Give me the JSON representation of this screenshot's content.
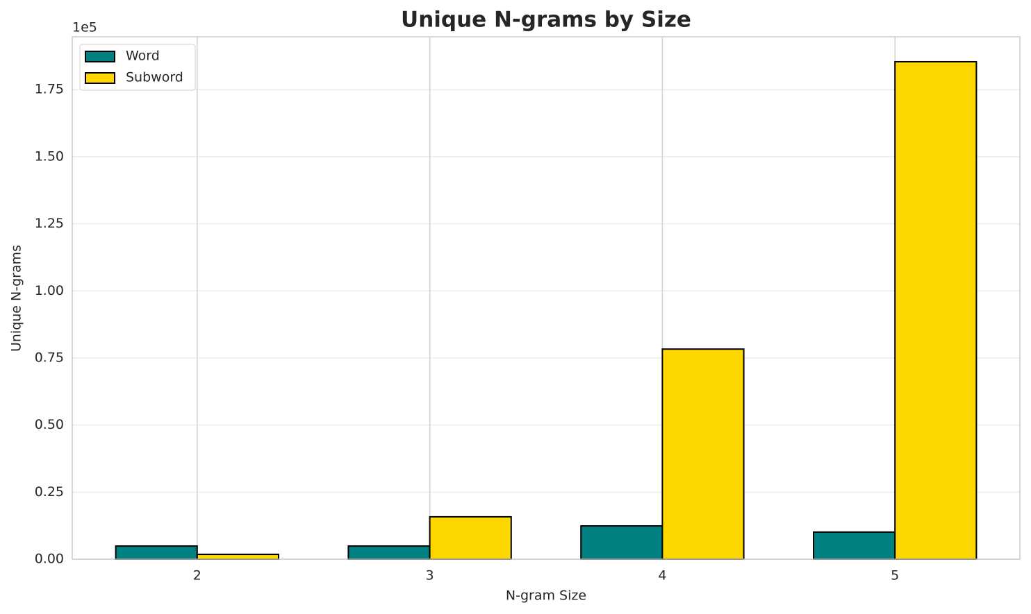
{
  "chart_data": {
    "type": "bar",
    "title": "Unique N-grams by Size",
    "x_label": "N-gram Size",
    "y_label": "Unique N-grams",
    "y_offset_label": "1e5",
    "categories": [
      "2",
      "3",
      "4",
      "5"
    ],
    "series": [
      {
        "name": "Word",
        "color": "#008080",
        "values": [
          4900,
          4900,
          12400,
          10100
        ]
      },
      {
        "name": "Subword",
        "color": "#ffd700",
        "values": [
          1800,
          15800,
          78300,
          185400
        ]
      }
    ],
    "ylim": [
      0,
      194700
    ],
    "yticks": [
      {
        "value": 0,
        "label": "0.00"
      },
      {
        "value": 25000,
        "label": "0.25"
      },
      {
        "value": 50000,
        "label": "0.50"
      },
      {
        "value": 75000,
        "label": "0.75"
      },
      {
        "value": 100000,
        "label": "1.00"
      },
      {
        "value": 125000,
        "label": "1.25"
      },
      {
        "value": 150000,
        "label": "1.50"
      },
      {
        "value": 175000,
        "label": "1.75"
      }
    ],
    "grid": true,
    "legend": "upper left"
  }
}
